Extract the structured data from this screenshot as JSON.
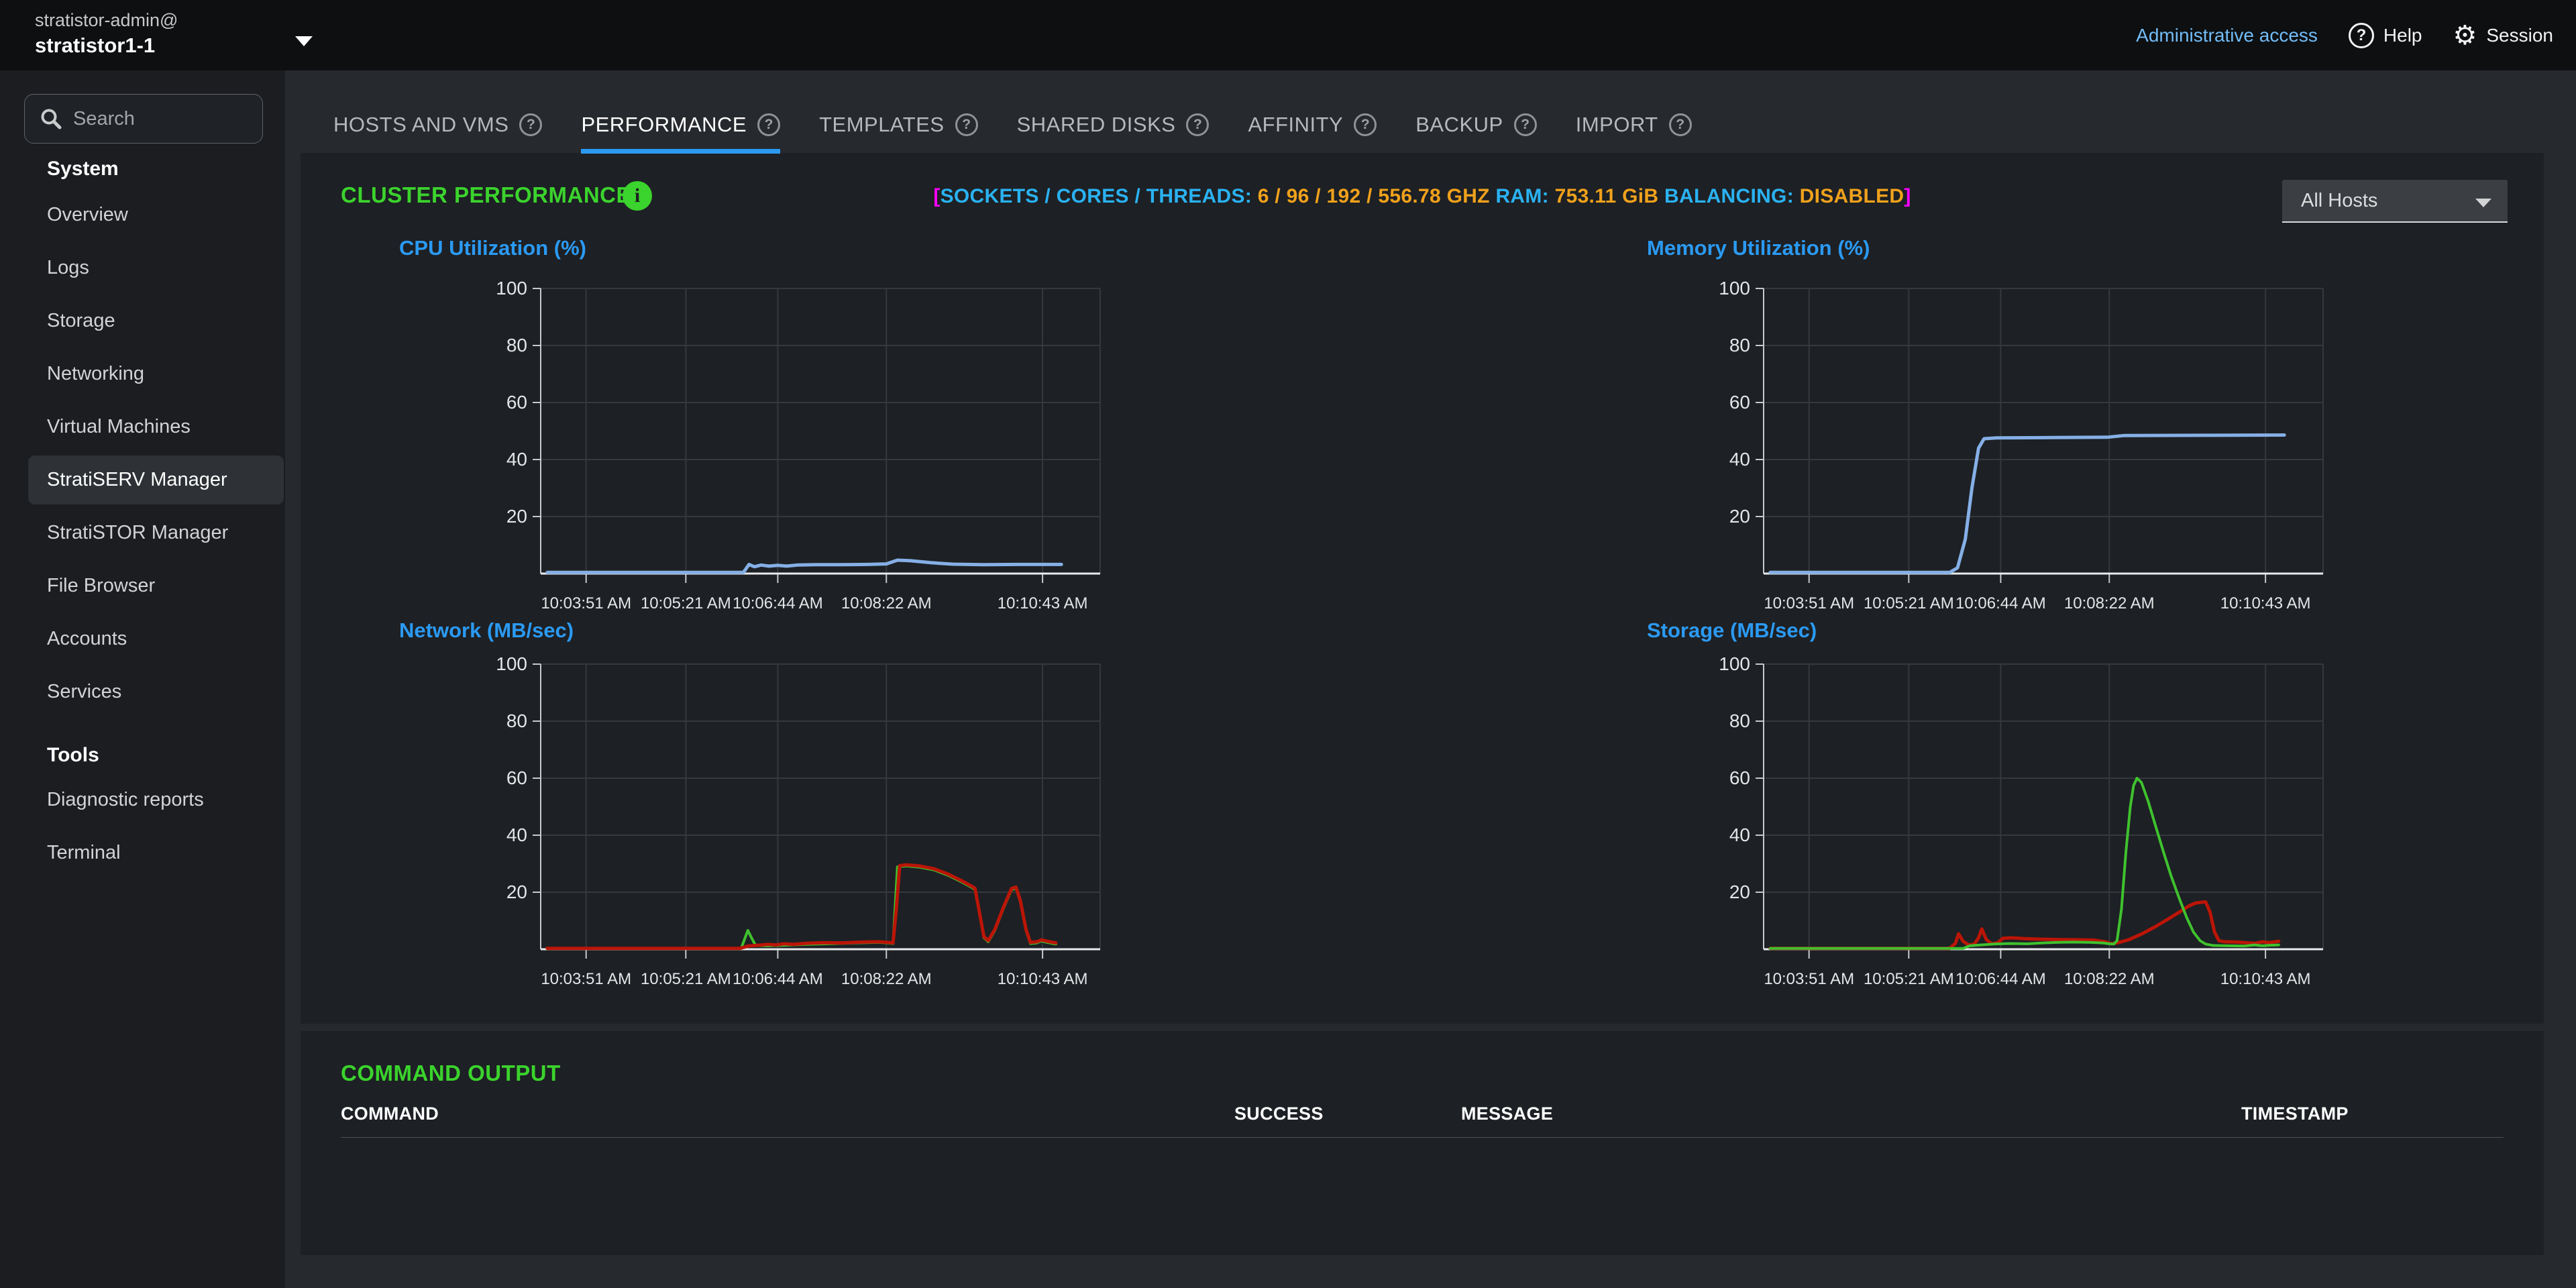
{
  "topbar": {
    "user_line1": "stratistor-admin@",
    "user_line2": "stratistor1-1",
    "admin_access": "Administrative access",
    "help_label": "Help",
    "session_label": "Session"
  },
  "sidebar": {
    "search_placeholder": "Search",
    "sections": [
      {
        "label": "System",
        "items": [
          "Overview",
          "Logs",
          "Storage",
          "Networking",
          "Virtual Machines",
          "StratiSERV Manager",
          "StratiSTOR Manager",
          "File Browser",
          "Accounts",
          "Services"
        ],
        "selected": "StratiSERV Manager"
      },
      {
        "label": "Tools",
        "items": [
          "Diagnostic reports",
          "Terminal"
        ],
        "selected": null
      }
    ]
  },
  "tabs": [
    {
      "label": "HOSTS AND VMS",
      "active": false
    },
    {
      "label": "PERFORMANCE",
      "active": true
    },
    {
      "label": "TEMPLATES",
      "active": false
    },
    {
      "label": "SHARED DISKS",
      "active": false
    },
    {
      "label": "AFFINITY",
      "active": false
    },
    {
      "label": "BACKUP",
      "active": false
    },
    {
      "label": "IMPORT",
      "active": false
    }
  ],
  "performance": {
    "title": "CLUSTER PERFORMANCE",
    "stats_segments": [
      {
        "text": "[",
        "type": "bracket"
      },
      {
        "text": "SOCKETS / CORES / THREADS: ",
        "type": "label"
      },
      {
        "text": "6 / 96 / 192 / 556.78 GHZ",
        "type": "value"
      },
      {
        "text": "   RAM: ",
        "type": "label"
      },
      {
        "text": " 753.11 GiB",
        "type": "value"
      },
      {
        "text": "   BALANCING: ",
        "type": "label"
      },
      {
        "text": " DISABLED",
        "type": "value"
      },
      {
        "text": "]",
        "type": "bracket"
      }
    ],
    "host_filter_value": "All Hosts"
  },
  "command_output": {
    "title": "COMMAND OUTPUT",
    "columns": [
      "COMMAND",
      "SUCCESS",
      "MESSAGE",
      "TIMESTAMP"
    ],
    "rows": []
  },
  "colors": {
    "accent_blue": "#2b9af3",
    "title_green": "#3bd32d",
    "stat_label_cyan": "#2ab2f2",
    "stat_value_orange": "#f0a11c",
    "stat_bracket_magenta": "#ff00fc",
    "line_blue": "#85afe6",
    "line_red": "#bb1507",
    "line_green": "#3fc22e",
    "link_blue": "#73bcf7",
    "grid": "#35383c",
    "axis": "#c8cacc",
    "axis_baseline": "#e9eaeb",
    "tick_text": "#e4e5e7"
  },
  "chart_data": [
    {
      "type": "line",
      "id": "cpu",
      "title": "CPU Utilization (%)",
      "ylabel": "",
      "ylim": [
        0,
        100
      ],
      "yticks": [
        20,
        40,
        60,
        80,
        100
      ],
      "grid": true,
      "legend": "none",
      "x_domain_seconds": [
        0,
        505
      ],
      "xticks": [
        {
          "t": 41,
          "label": "10:03:51 AM"
        },
        {
          "t": 131,
          "label": "10:05:21 AM"
        },
        {
          "t": 214,
          "label": "10:06:44 AM"
        },
        {
          "t": 312,
          "label": "10:08:22 AM"
        },
        {
          "t": 453,
          "label": "10:10:43 AM"
        }
      ],
      "series": [
        {
          "name": "cpu-total",
          "color": "line_blue",
          "width": 5,
          "points": [
            [
              6,
              0.4
            ],
            [
              60,
              0.4
            ],
            [
              120,
              0.4
            ],
            [
              183,
              0.4
            ],
            [
              188,
              3.2
            ],
            [
              193,
              2.4
            ],
            [
              199,
              3.0
            ],
            [
              206,
              2.6
            ],
            [
              214,
              2.9
            ],
            [
              222,
              2.6
            ],
            [
              232,
              3.0
            ],
            [
              248,
              3.1
            ],
            [
              270,
              3.1
            ],
            [
              295,
              3.2
            ],
            [
              312,
              3.4
            ],
            [
              322,
              4.7
            ],
            [
              334,
              4.5
            ],
            [
              352,
              3.8
            ],
            [
              372,
              3.3
            ],
            [
              400,
              3.1
            ],
            [
              430,
              3.2
            ],
            [
              470,
              3.2
            ]
          ]
        }
      ]
    },
    {
      "type": "line",
      "id": "memory",
      "title": "Memory Utilization (%)",
      "ylabel": "",
      "ylim": [
        0,
        100
      ],
      "yticks": [
        20,
        40,
        60,
        80,
        100
      ],
      "grid": true,
      "legend": "none",
      "x_domain_seconds": [
        0,
        505
      ],
      "xticks": [
        {
          "t": 41,
          "label": "10:03:51 AM"
        },
        {
          "t": 131,
          "label": "10:05:21 AM"
        },
        {
          "t": 214,
          "label": "10:06:44 AM"
        },
        {
          "t": 312,
          "label": "10:08:22 AM"
        },
        {
          "t": 453,
          "label": "10:10:43 AM"
        }
      ],
      "series": [
        {
          "name": "memory-total",
          "color": "line_blue",
          "width": 5,
          "points": [
            [
              6,
              0.4
            ],
            [
              100,
              0.4
            ],
            [
              168,
              0.4
            ],
            [
              175,
              2
            ],
            [
              182,
              12
            ],
            [
              188,
              30
            ],
            [
              194,
              44
            ],
            [
              199,
              47.3
            ],
            [
              210,
              47.6
            ],
            [
              260,
              47.7
            ],
            [
              310,
              47.8
            ],
            [
              325,
              48.4
            ],
            [
              400,
              48.5
            ],
            [
              470,
              48.6
            ]
          ]
        }
      ]
    },
    {
      "type": "line",
      "id": "network",
      "title": "Network (MB/sec)",
      "ylabel": "",
      "ylim": [
        0,
        100
      ],
      "yticks": [
        20,
        40,
        60,
        80,
        100
      ],
      "grid": true,
      "legend": "none",
      "x_domain_seconds": [
        0,
        505
      ],
      "xticks": [
        {
          "t": 41,
          "label": "10:03:51 AM"
        },
        {
          "t": 131,
          "label": "10:05:21 AM"
        },
        {
          "t": 214,
          "label": "10:06:44 AM"
        },
        {
          "t": 312,
          "label": "10:08:22 AM"
        },
        {
          "t": 453,
          "label": "10:10:43 AM"
        }
      ],
      "series": [
        {
          "name": "network-rx",
          "color": "line_green",
          "width": 4,
          "points": [
            [
              6,
              0.3
            ],
            [
              120,
              0.3
            ],
            [
              181,
              0.3
            ],
            [
              184,
              3.5
            ],
            [
              187,
              6.6
            ],
            [
              190,
              4.2
            ],
            [
              194,
              1.3
            ],
            [
              205,
              1.2
            ],
            [
              220,
              1.4
            ],
            [
              240,
              1.7
            ],
            [
              260,
              1.9
            ],
            [
              285,
              2.2
            ],
            [
              305,
              2.4
            ],
            [
              313,
              2.2
            ],
            [
              318,
              2.0
            ],
            [
              322,
              28.9
            ],
            [
              330,
              29.2
            ],
            [
              342,
              28.8
            ],
            [
              355,
              27.8
            ],
            [
              368,
              25.9
            ],
            [
              380,
              23.6
            ],
            [
              388,
              21.9
            ],
            [
              392,
              21.0
            ],
            [
              396,
              12.6
            ],
            [
              400,
              4.1
            ],
            [
              404,
              2.6
            ],
            [
              410,
              6.6
            ],
            [
              418,
              14.6
            ],
            [
              425,
              20.9
            ],
            [
              429,
              21.4
            ],
            [
              433,
              16.6
            ],
            [
              438,
              6.6
            ],
            [
              442,
              2.0
            ],
            [
              448,
              2.2
            ],
            [
              452,
              2.9
            ],
            [
              457,
              2.4
            ],
            [
              465,
              1.8
            ]
          ]
        },
        {
          "name": "network-tx",
          "color": "line_red",
          "width": 5,
          "points": [
            [
              6,
              0.3
            ],
            [
              100,
              0.3
            ],
            [
              180,
              0.3
            ],
            [
              187,
              1.1
            ],
            [
              196,
              1.4
            ],
            [
              205,
              1.7
            ],
            [
              212,
              1.5
            ],
            [
              220,
              1.9
            ],
            [
              228,
              1.7
            ],
            [
              240,
              2.1
            ],
            [
              256,
              2.3
            ],
            [
              272,
              2.2
            ],
            [
              290,
              2.5
            ],
            [
              305,
              2.6
            ],
            [
              313,
              2.4
            ],
            [
              318,
              2.2
            ],
            [
              321,
              14
            ],
            [
              324,
              29.3
            ],
            [
              330,
              29.6
            ],
            [
              342,
              29.2
            ],
            [
              355,
              28.2
            ],
            [
              368,
              26.3
            ],
            [
              380,
              24.0
            ],
            [
              388,
              22.3
            ],
            [
              392,
              21.4
            ],
            [
              396,
              13.0
            ],
            [
              400,
              4.5
            ],
            [
              404,
              3.0
            ],
            [
              410,
              7.0
            ],
            [
              418,
              15.0
            ],
            [
              425,
              21.3
            ],
            [
              429,
              21.8
            ],
            [
              433,
              17.0
            ],
            [
              438,
              7.0
            ],
            [
              442,
              2.4
            ],
            [
              448,
              2.6
            ],
            [
              452,
              3.3
            ],
            [
              457,
              2.8
            ],
            [
              465,
              2.2
            ]
          ]
        }
      ]
    },
    {
      "type": "line",
      "id": "storage",
      "title": "Storage (MB/sec)",
      "ylabel": "",
      "ylim": [
        0,
        100
      ],
      "yticks": [
        20,
        40,
        60,
        80,
        100
      ],
      "grid": true,
      "legend": "none",
      "x_domain_seconds": [
        0,
        505
      ],
      "xticks": [
        {
          "t": 41,
          "label": "10:03:51 AM"
        },
        {
          "t": 131,
          "label": "10:05:21 AM"
        },
        {
          "t": 214,
          "label": "10:06:44 AM"
        },
        {
          "t": 312,
          "label": "10:08:22 AM"
        },
        {
          "t": 453,
          "label": "10:10:43 AM"
        }
      ],
      "series": [
        {
          "name": "storage-write",
          "color": "line_red",
          "width": 5,
          "points": [
            [
              6,
              0.3
            ],
            [
              100,
              0.3
            ],
            [
              168,
              0.3
            ],
            [
              173,
              2.0
            ],
            [
              176,
              5.4
            ],
            [
              180,
              2.8
            ],
            [
              185,
              1.5
            ],
            [
              190,
              1.7
            ],
            [
              194,
              4.0
            ],
            [
              197,
              7.1
            ],
            [
              201,
              3.4
            ],
            [
              206,
              1.9
            ],
            [
              211,
              2.2
            ],
            [
              216,
              3.8
            ],
            [
              224,
              4.0
            ],
            [
              236,
              3.7
            ],
            [
              252,
              3.5
            ],
            [
              268,
              3.4
            ],
            [
              284,
              3.3
            ],
            [
              298,
              3.2
            ],
            [
              308,
              2.6
            ],
            [
              314,
              1.9
            ],
            [
              320,
              2.3
            ],
            [
              330,
              3.4
            ],
            [
              342,
              5.5
            ],
            [
              354,
              8.0
            ],
            [
              366,
              10.8
            ],
            [
              376,
              13.2
            ],
            [
              384,
              15.2
            ],
            [
              390,
              16.2
            ],
            [
              396,
              16.5
            ],
            [
              399,
              16.6
            ],
            [
              403,
              13.0
            ],
            [
              407,
              6.0
            ],
            [
              411,
              3.0
            ],
            [
              416,
              2.6
            ],
            [
              428,
              2.5
            ],
            [
              438,
              2.2
            ],
            [
              444,
              2.1
            ],
            [
              450,
              2.6
            ],
            [
              456,
              2.3
            ],
            [
              465,
              2.8
            ]
          ]
        },
        {
          "name": "storage-read",
          "color": "line_green",
          "width": 4,
          "points": [
            [
              6,
              0.3
            ],
            [
              120,
              0.3
            ],
            [
              180,
              0.3
            ],
            [
              186,
              1.2
            ],
            [
              196,
              1.5
            ],
            [
              208,
              1.8
            ],
            [
              222,
              2.0
            ],
            [
              238,
              1.9
            ],
            [
              252,
              2.2
            ],
            [
              266,
              2.4
            ],
            [
              280,
              2.5
            ],
            [
              294,
              2.4
            ],
            [
              306,
              2.2
            ],
            [
              312,
              1.9
            ],
            [
              316,
              1.8
            ],
            [
              319,
              3.0
            ],
            [
              323,
              14
            ],
            [
              327,
              34
            ],
            [
              331,
              50
            ],
            [
              334,
              57.5
            ],
            [
              337,
              60
            ],
            [
              341,
              58.5
            ],
            [
              347,
              52
            ],
            [
              354,
              43
            ],
            [
              361,
              34
            ],
            [
              368,
              25.5
            ],
            [
              375,
              18
            ],
            [
              382,
              11
            ],
            [
              388,
              6
            ],
            [
              394,
              3
            ],
            [
              399,
              1.8
            ],
            [
              406,
              1.3
            ],
            [
              420,
              1.2
            ],
            [
              434,
              1.1
            ],
            [
              443,
              1.5
            ],
            [
              450,
              1.2
            ],
            [
              457,
              1.4
            ],
            [
              465,
              1.5
            ]
          ]
        }
      ]
    }
  ]
}
